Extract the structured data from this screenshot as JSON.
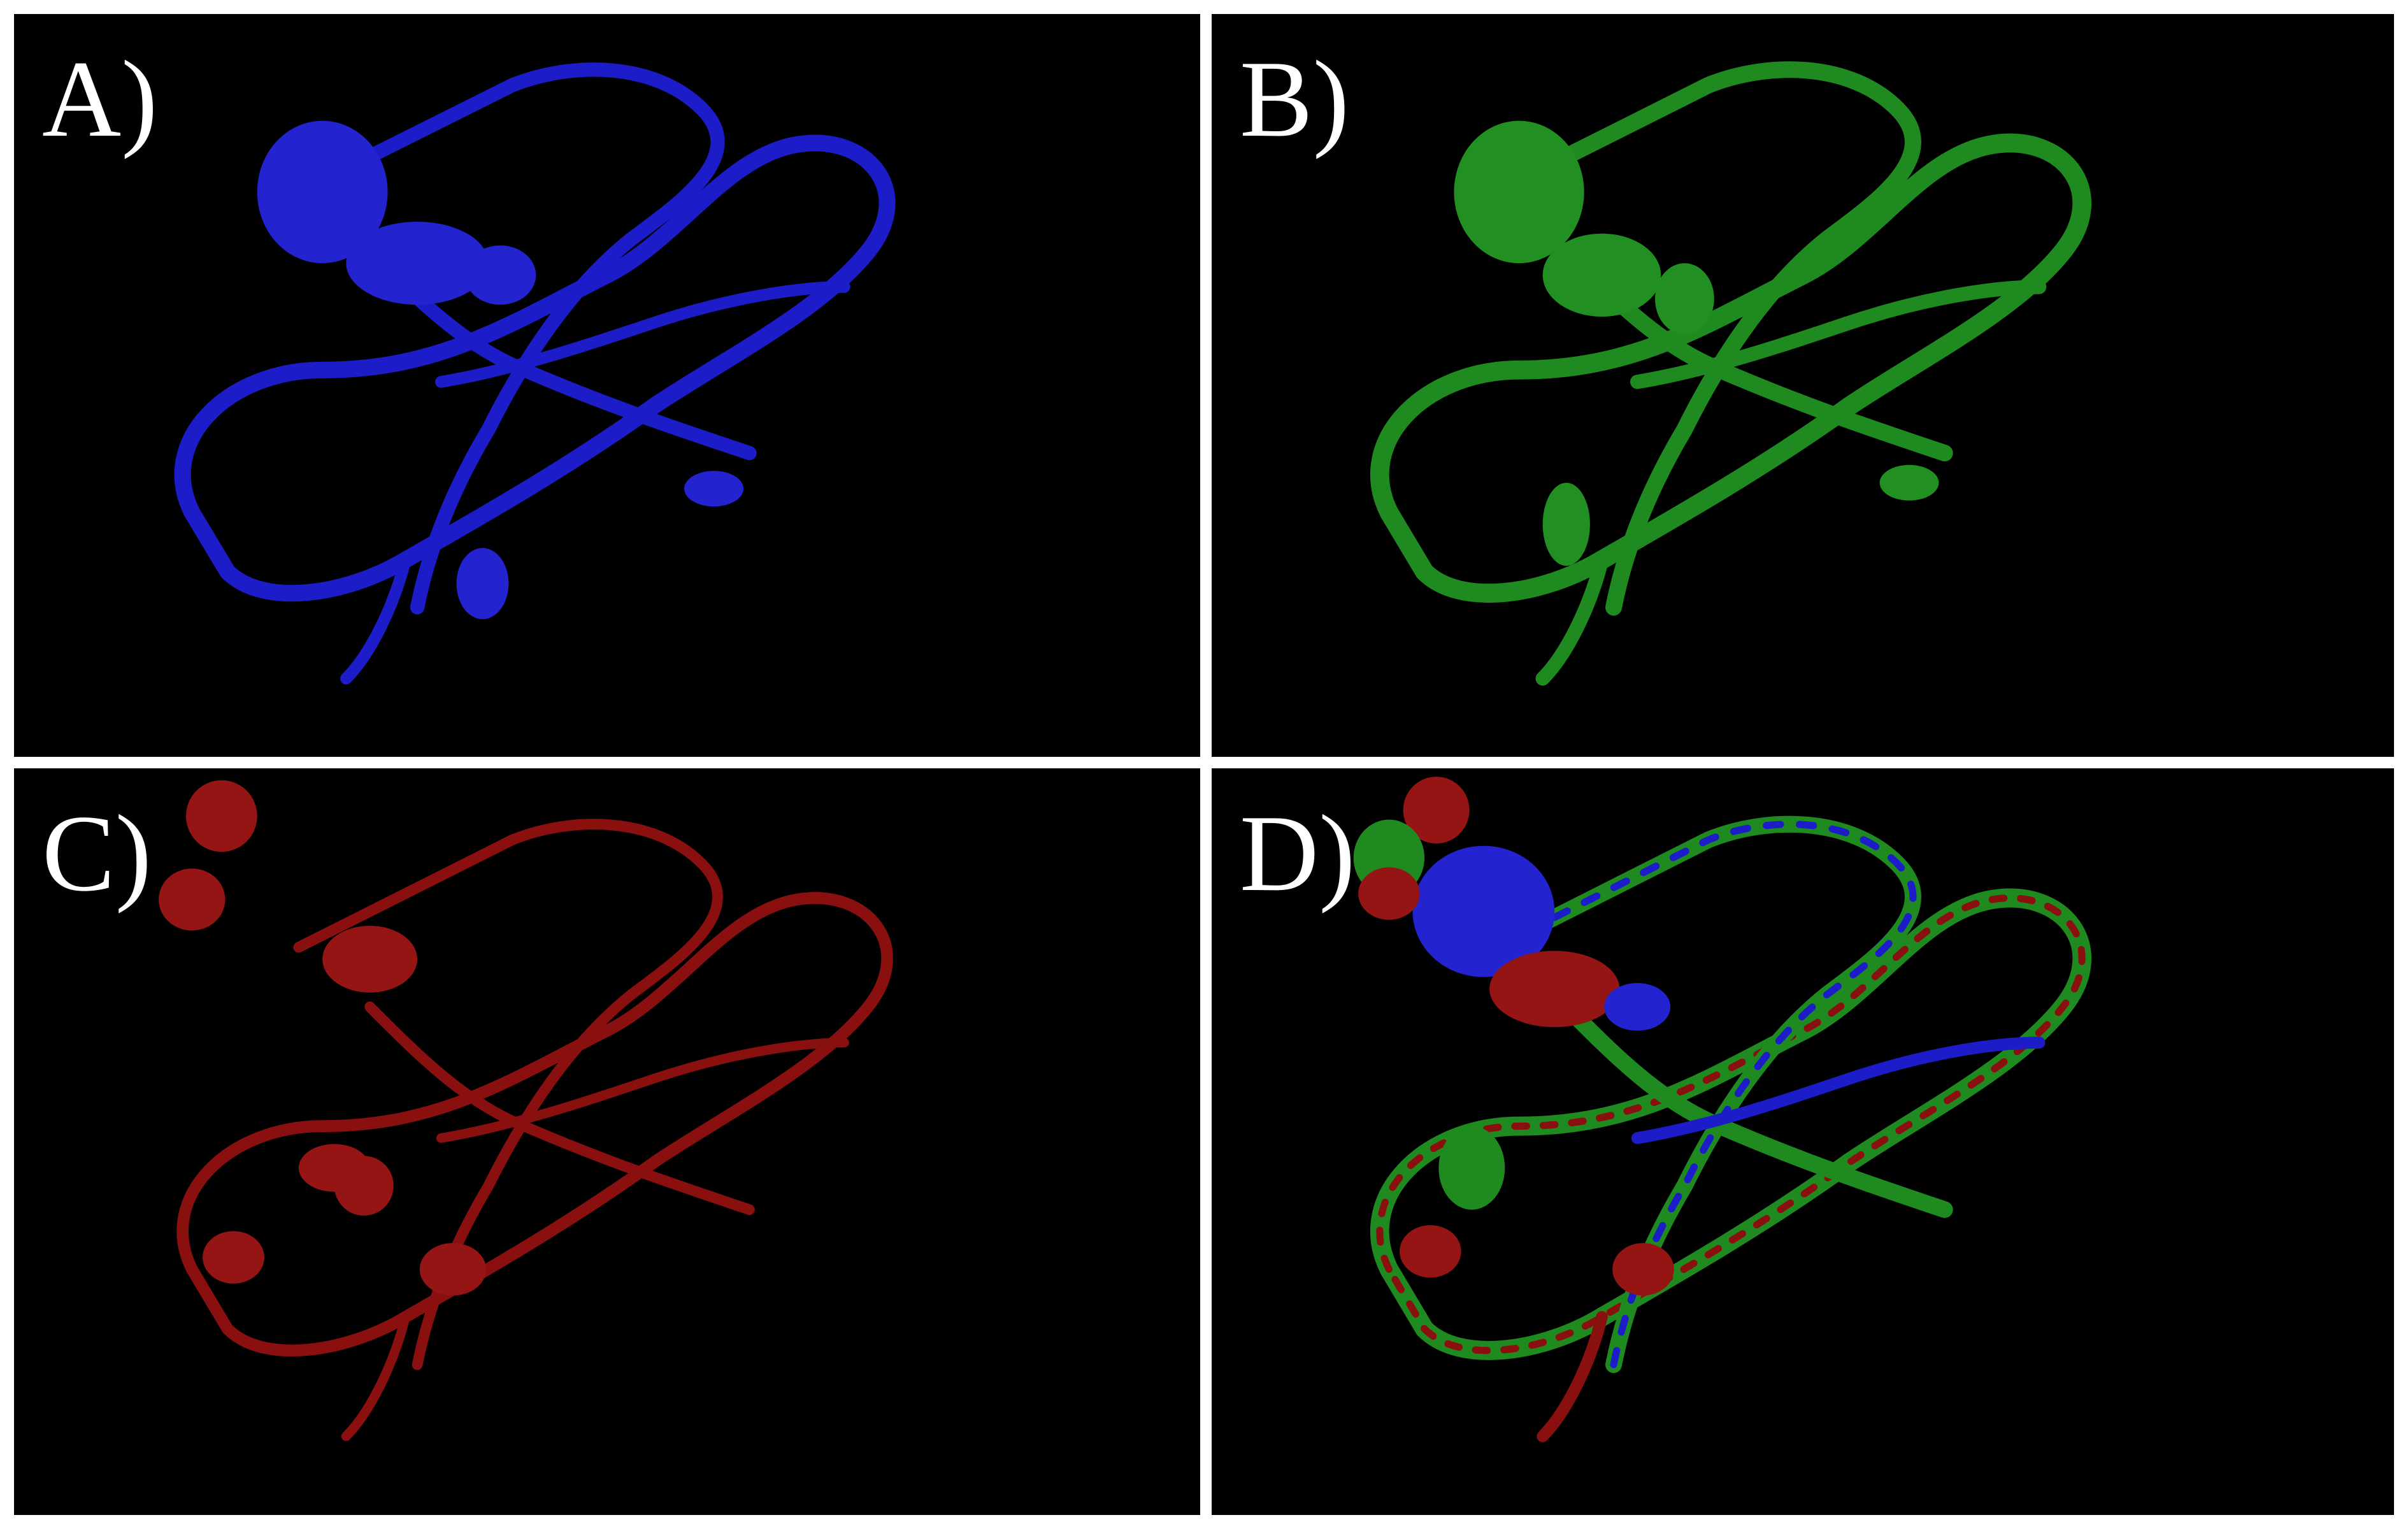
{
  "panels": [
    {
      "id": "a",
      "label": "A)",
      "render_color": "#1c1cc8",
      "highlight": "#5a5aff"
    },
    {
      "id": "b",
      "label": "B)",
      "render_color": "#1f8a1f",
      "highlight": "#55d055"
    },
    {
      "id": "c",
      "label": "C)",
      "render_color": "#8a1010",
      "highlight": "#e03030"
    },
    {
      "id": "d",
      "label": "D)",
      "render_colors": [
        "#1c1cc8",
        "#1f8a1f",
        "#8a1010"
      ]
    }
  ],
  "divider_color": "#ffffff",
  "background_color": "#000000"
}
